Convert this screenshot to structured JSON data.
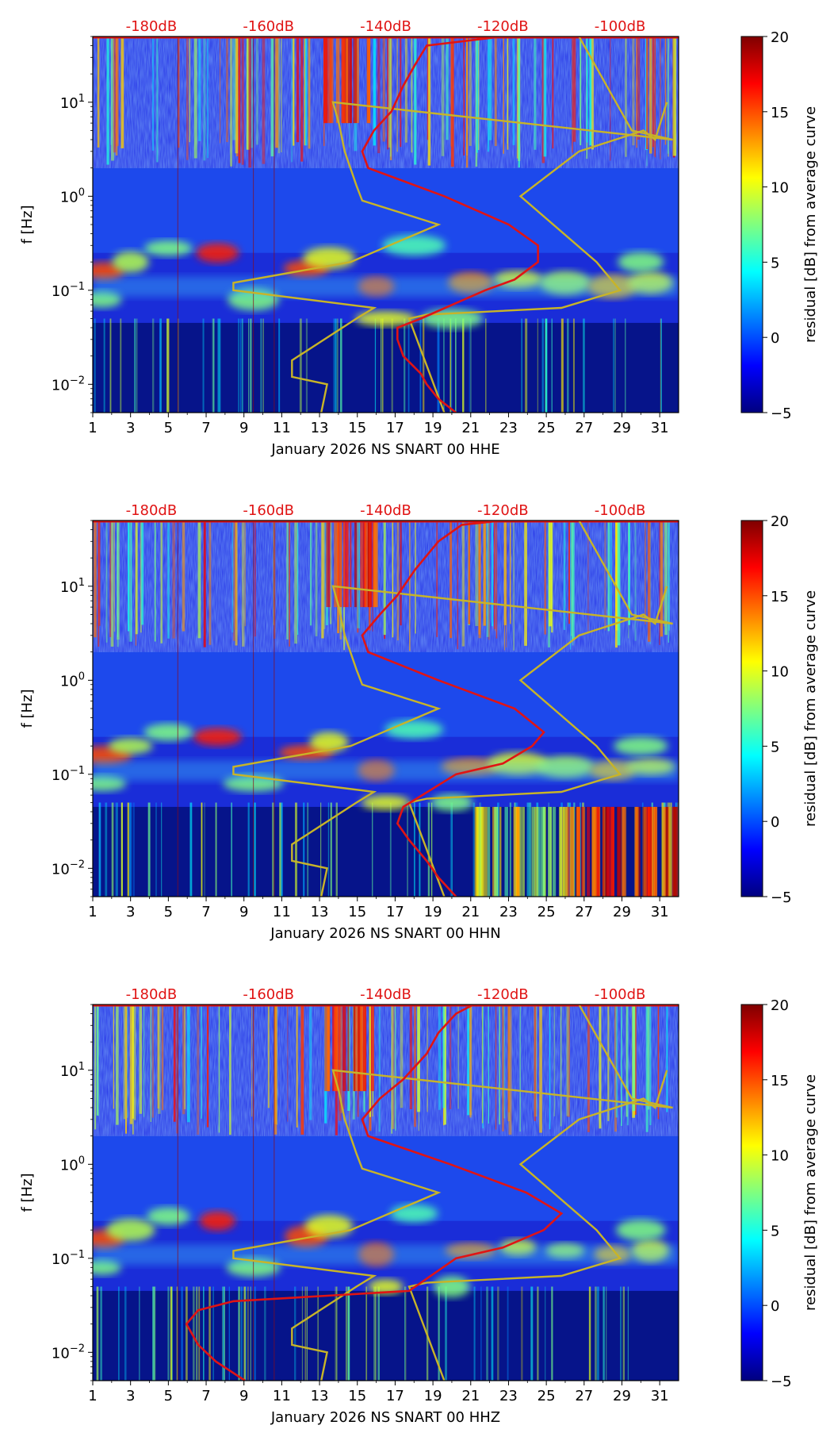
{
  "chart_data": [
    {
      "type": "heatmap",
      "xlabel": "January 2026 NS SNART 00 HHE",
      "ylabel": "f [Hz]",
      "x_ticks": [
        "1",
        "3",
        "5",
        "7",
        "9",
        "11",
        "13",
        "15",
        "17",
        "19",
        "21",
        "23",
        "25",
        "27",
        "29",
        "31"
      ],
      "x_range": [
        1,
        32
      ],
      "y_ticks": [
        {
          "value": 0.01,
          "base": "10",
          "exp": "−2"
        },
        {
          "value": 0.1,
          "base": "10",
          "exp": "−1"
        },
        {
          "value": 1,
          "base": "10",
          "exp": "0"
        },
        {
          "value": 10,
          "base": "10",
          "exp": "1"
        }
      ],
      "y_range": [
        0.005,
        50
      ],
      "db_ticks": [
        "-180dB",
        "-160dB",
        "-140dB",
        "-120dB",
        "-100dB"
      ],
      "db_range": [
        -190,
        -90
      ],
      "colorbar": {
        "label": "residual [dB] from average curve",
        "range": [
          -5,
          20
        ],
        "ticks": [
          "−5",
          "0",
          "5",
          "10",
          "15",
          "20"
        ]
      },
      "colors": {
        "median_curve": "#e01414",
        "model_curves": "#c8b428",
        "db_labels": "#e01414"
      },
      "median_curve": [
        [
          -128,
          0.005
        ],
        [
          -131,
          0.007
        ],
        [
          -133,
          0.01
        ],
        [
          -134,
          0.013
        ],
        [
          -137,
          0.02
        ],
        [
          -138,
          0.03
        ],
        [
          -138,
          0.04
        ],
        [
          -134,
          0.05
        ],
        [
          -123,
          0.1
        ],
        [
          -118,
          0.13
        ],
        [
          -114,
          0.2
        ],
        [
          -114,
          0.3
        ],
        [
          -119,
          0.5
        ],
        [
          -130,
          1
        ],
        [
          -143,
          2
        ],
        [
          -144,
          3
        ],
        [
          -142,
          5
        ],
        [
          -139,
          8
        ],
        [
          -137,
          15
        ],
        [
          -135,
          25
        ],
        [
          -133,
          40
        ],
        [
          -120,
          50
        ],
        [
          -90,
          50
        ]
      ],
      "nhnm_curve": [
        [
          -151,
          0.005
        ],
        [
          -150,
          0.01
        ],
        [
          -156,
          0.012
        ],
        [
          -156,
          0.018
        ],
        [
          -145,
          0.05
        ],
        [
          -142,
          0.065
        ],
        [
          -166,
          0.1
        ],
        [
          -166,
          0.12
        ],
        [
          -146,
          0.2
        ],
        [
          -131,
          0.5
        ],
        [
          -144,
          0.9
        ],
        [
          -145,
          1.3
        ],
        [
          -147,
          3
        ],
        [
          -148,
          6
        ],
        [
          -149,
          10
        ],
        [
          -91,
          4
        ],
        [
          -98,
          5
        ],
        [
          -107,
          50
        ]
      ],
      "nlnm_curve": [
        [
          -130,
          0.005
        ],
        [
          -136,
          0.05
        ],
        [
          -133,
          0.055
        ],
        [
          -110,
          0.065
        ],
        [
          -100,
          0.1
        ],
        [
          -104,
          0.2
        ],
        [
          -117,
          1
        ],
        [
          -107,
          3
        ],
        [
          -96,
          5
        ],
        [
          -94,
          4
        ],
        [
          -92,
          10
        ]
      ]
    },
    {
      "type": "heatmap",
      "xlabel": "January 2026 NS SNART 00 HHN",
      "ylabel": "f [Hz]",
      "x_ticks": [
        "1",
        "3",
        "5",
        "7",
        "9",
        "11",
        "13",
        "15",
        "17",
        "19",
        "21",
        "23",
        "25",
        "27",
        "29",
        "31"
      ],
      "x_range": [
        1,
        32
      ],
      "y_ticks": [
        {
          "value": 0.01,
          "base": "10",
          "exp": "−2"
        },
        {
          "value": 0.1,
          "base": "10",
          "exp": "−1"
        },
        {
          "value": 1,
          "base": "10",
          "exp": "0"
        },
        {
          "value": 10,
          "base": "10",
          "exp": "1"
        }
      ],
      "y_range": [
        0.005,
        50
      ],
      "db_ticks": [
        "-180dB",
        "-160dB",
        "-140dB",
        "-120dB",
        "-100dB"
      ],
      "db_range": [
        -190,
        -90
      ],
      "colorbar": {
        "label": "residual [dB] from average curve",
        "range": [
          -5,
          20
        ],
        "ticks": [
          "−5",
          "0",
          "5",
          "10",
          "15",
          "20"
        ]
      },
      "colors": {
        "median_curve": "#e01414",
        "model_curves": "#c8b428",
        "db_labels": "#e01414"
      },
      "median_curve": [
        [
          -128,
          0.005
        ],
        [
          -131,
          0.008
        ],
        [
          -133,
          0.012
        ],
        [
          -136,
          0.02
        ],
        [
          -138,
          0.03
        ],
        [
          -137,
          0.045
        ],
        [
          -128,
          0.1
        ],
        [
          -120,
          0.13
        ],
        [
          -115,
          0.2
        ],
        [
          -113,
          0.28
        ],
        [
          -118,
          0.5
        ],
        [
          -131,
          1
        ],
        [
          -143,
          2
        ],
        [
          -144,
          3
        ],
        [
          -141,
          5
        ],
        [
          -138,
          8
        ],
        [
          -135,
          15
        ],
        [
          -131,
          30
        ],
        [
          -127,
          45
        ],
        [
          -120,
          50
        ],
        [
          -90,
          50
        ]
      ],
      "nhnm_curve": [
        [
          -151,
          0.005
        ],
        [
          -150,
          0.01
        ],
        [
          -156,
          0.012
        ],
        [
          -156,
          0.018
        ],
        [
          -145,
          0.05
        ],
        [
          -142,
          0.065
        ],
        [
          -166,
          0.1
        ],
        [
          -166,
          0.12
        ],
        [
          -146,
          0.2
        ],
        [
          -131,
          0.5
        ],
        [
          -144,
          0.9
        ],
        [
          -145,
          1.3
        ],
        [
          -147,
          3
        ],
        [
          -148,
          6
        ],
        [
          -149,
          10
        ],
        [
          -91,
          4
        ],
        [
          -98,
          5
        ],
        [
          -107,
          50
        ]
      ],
      "nlnm_curve": [
        [
          -130,
          0.005
        ],
        [
          -136,
          0.05
        ],
        [
          -133,
          0.055
        ],
        [
          -110,
          0.065
        ],
        [
          -100,
          0.1
        ],
        [
          -104,
          0.2
        ],
        [
          -117,
          1
        ],
        [
          -107,
          3
        ],
        [
          -96,
          5
        ],
        [
          -94,
          4
        ],
        [
          -92,
          10
        ]
      ]
    },
    {
      "type": "heatmap",
      "xlabel": "January 2026 NS SNART 00 HHZ",
      "ylabel": "f [Hz]",
      "x_ticks": [
        "1",
        "3",
        "5",
        "7",
        "9",
        "11",
        "13",
        "15",
        "17",
        "19",
        "21",
        "23",
        "25",
        "27",
        "29",
        "31"
      ],
      "x_range": [
        1,
        32
      ],
      "y_ticks": [
        {
          "value": 0.01,
          "base": "10",
          "exp": "−2"
        },
        {
          "value": 0.1,
          "base": "10",
          "exp": "−1"
        },
        {
          "value": 1,
          "base": "10",
          "exp": "0"
        },
        {
          "value": 10,
          "base": "10",
          "exp": "1"
        }
      ],
      "y_range": [
        0.005,
        50
      ],
      "db_ticks": [
        "-180dB",
        "-160dB",
        "-140dB",
        "-120dB",
        "-100dB"
      ],
      "db_range": [
        -190,
        -90
      ],
      "colorbar": {
        "label": "residual [dB] from average curve",
        "range": [
          -5,
          20
        ],
        "ticks": [
          "−5",
          "0",
          "5",
          "10",
          "15",
          "20"
        ]
      },
      "colors": {
        "median_curve": "#e01414",
        "model_curves": "#c8b428",
        "db_labels": "#e01414"
      },
      "median_curve": [
        [
          -164,
          0.005
        ],
        [
          -169,
          0.008
        ],
        [
          -172,
          0.012
        ],
        [
          -174,
          0.02
        ],
        [
          -172,
          0.028
        ],
        [
          -166,
          0.035
        ],
        [
          -150,
          0.04
        ],
        [
          -136,
          0.045
        ],
        [
          -128,
          0.1
        ],
        [
          -120,
          0.13
        ],
        [
          -113,
          0.2
        ],
        [
          -110,
          0.3
        ],
        [
          -116,
          0.5
        ],
        [
          -129,
          1
        ],
        [
          -143,
          2
        ],
        [
          -144,
          3
        ],
        [
          -141,
          5
        ],
        [
          -137,
          8
        ],
        [
          -133,
          15
        ],
        [
          -131,
          25
        ],
        [
          -128,
          40
        ],
        [
          -125,
          50
        ],
        [
          -90,
          50
        ]
      ],
      "nhnm_curve": [
        [
          -151,
          0.005
        ],
        [
          -150,
          0.01
        ],
        [
          -156,
          0.012
        ],
        [
          -156,
          0.018
        ],
        [
          -145,
          0.05
        ],
        [
          -142,
          0.065
        ],
        [
          -166,
          0.1
        ],
        [
          -166,
          0.12
        ],
        [
          -146,
          0.2
        ],
        [
          -131,
          0.5
        ],
        [
          -144,
          0.9
        ],
        [
          -145,
          1.3
        ],
        [
          -147,
          3
        ],
        [
          -148,
          6
        ],
        [
          -149,
          10
        ],
        [
          -91,
          4
        ],
        [
          -98,
          5
        ],
        [
          -107,
          50
        ]
      ],
      "nlnm_curve": [
        [
          -130,
          0.005
        ],
        [
          -136,
          0.05
        ],
        [
          -133,
          0.055
        ],
        [
          -110,
          0.065
        ],
        [
          -100,
          0.1
        ],
        [
          -104,
          0.2
        ],
        [
          -117,
          1
        ],
        [
          -107,
          3
        ],
        [
          -96,
          5
        ],
        [
          -94,
          4
        ],
        [
          -92,
          10
        ]
      ]
    }
  ]
}
